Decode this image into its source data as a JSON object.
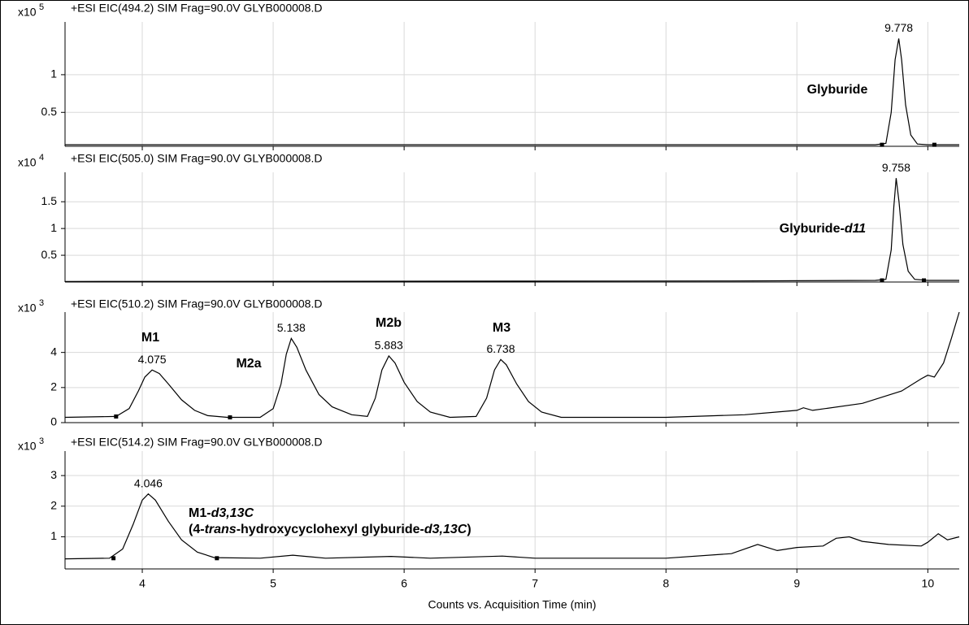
{
  "chart_data": [
    {
      "type": "line",
      "title": "+ESI EIC(494.2) SIM Frag=90.0V GLYB000008.D",
      "multiplier": {
        "base": "x10",
        "exponent": "5"
      },
      "color": "#000000",
      "grid": true,
      "x_tick_labels": false,
      "xlim": [
        3.41,
        10.24
      ],
      "xticks": [
        4,
        5,
        6,
        7,
        8,
        9,
        10
      ],
      "ylim": [
        0.05,
        1.7
      ],
      "yticks": [
        0.5,
        1
      ],
      "x": [
        3.41,
        9.0,
        9.6,
        9.68,
        9.72,
        9.75,
        9.778,
        9.8,
        9.83,
        9.87,
        9.92,
        10.0,
        10.24
      ],
      "values": [
        0.07,
        0.07,
        0.07,
        0.09,
        0.5,
        1.2,
        1.48,
        1.2,
        0.6,
        0.2,
        0.08,
        0.07,
        0.07
      ],
      "peaks": [
        {
          "time": 9.778,
          "height": 1.48
        }
      ],
      "integration_markers": {
        "x": [
          9.65,
          10.05
        ],
        "y": [
          0.07,
          0.07
        ]
      },
      "annotations": [
        {
          "parts": [
            "Glyburide"
          ]
        }
      ]
    },
    {
      "type": "line",
      "title": "+ESI EIC(505.0) SIM Frag=90.0V GLYB000008.D",
      "multiplier": {
        "base": "x10",
        "exponent": "4"
      },
      "color": "#000000",
      "grid": true,
      "x_tick_labels": false,
      "xlim": [
        3.41,
        10.24
      ],
      "xticks": [
        4,
        5,
        6,
        7,
        8,
        9,
        10
      ],
      "ylim": [
        0,
        2.05
      ],
      "yticks": [
        0.5,
        1,
        1.5
      ],
      "x": [
        3.41,
        8.5,
        9.6,
        9.68,
        9.72,
        9.74,
        9.758,
        9.78,
        9.81,
        9.85,
        9.9,
        10.0,
        10.24
      ],
      "values": [
        0.01,
        0.02,
        0.03,
        0.05,
        0.6,
        1.4,
        1.94,
        1.5,
        0.7,
        0.2,
        0.05,
        0.03,
        0.03
      ],
      "peaks": [
        {
          "time": 9.758,
          "height": 1.94
        }
      ],
      "integration_markers": {
        "x": [
          9.65,
          9.97
        ],
        "y": [
          0.03,
          0.03
        ]
      },
      "annotations": [
        {
          "parts": [
            "Glyburide-",
            "d11"
          ]
        }
      ]
    },
    {
      "type": "line",
      "title": "+ESI EIC(510.2) SIM Frag=90.0V GLYB000008.D",
      "multiplier": {
        "base": "x10",
        "exponent": "3"
      },
      "color": "#000000",
      "grid": true,
      "x_tick_labels": false,
      "xlim": [
        3.41,
        10.24
      ],
      "xticks": [
        4,
        5,
        6,
        7,
        8,
        9,
        10
      ],
      "ylim": [
        0,
        6.3
      ],
      "yticks": [
        0,
        2,
        4
      ],
      "x": [
        3.41,
        3.8,
        3.9,
        3.97,
        4.02,
        4.075,
        4.13,
        4.2,
        4.3,
        4.4,
        4.5,
        4.65,
        4.9,
        5.0,
        5.06,
        5.1,
        5.138,
        5.18,
        5.25,
        5.35,
        5.45,
        5.6,
        5.72,
        5.78,
        5.83,
        5.883,
        5.93,
        6.0,
        6.1,
        6.2,
        6.35,
        6.55,
        6.63,
        6.69,
        6.738,
        6.78,
        6.86,
        6.95,
        7.05,
        7.2,
        8.0,
        8.6,
        9.0,
        9.05,
        9.12,
        9.5,
        9.8,
        9.95,
        10.0,
        10.05,
        10.12,
        10.18,
        10.24
      ],
      "values": [
        0.3,
        0.35,
        0.8,
        1.8,
        2.6,
        3.0,
        2.8,
        2.2,
        1.3,
        0.7,
        0.4,
        0.3,
        0.3,
        0.8,
        2.2,
        3.9,
        4.8,
        4.3,
        3.0,
        1.6,
        0.9,
        0.45,
        0.35,
        1.4,
        3.0,
        3.8,
        3.4,
        2.3,
        1.2,
        0.6,
        0.3,
        0.35,
        1.4,
        3.0,
        3.6,
        3.3,
        2.2,
        1.2,
        0.6,
        0.3,
        0.3,
        0.45,
        0.7,
        0.85,
        0.7,
        1.1,
        1.8,
        2.5,
        2.7,
        2.6,
        3.4,
        4.8,
        6.3
      ],
      "peaks": [
        {
          "time": 4.075,
          "height": 3.0
        },
        {
          "time": 5.138,
          "height": 4.8
        },
        {
          "time": 5.883,
          "height": 3.8
        },
        {
          "time": 6.738,
          "height": 3.6
        }
      ],
      "integration_markers": {
        "x": [
          3.8,
          4.67
        ],
        "y": [
          0.35,
          0.3
        ]
      },
      "annotations": [
        {
          "parts": [
            "M1"
          ]
        },
        {
          "parts": [
            "M2a"
          ]
        },
        {
          "parts": [
            "M2b"
          ]
        },
        {
          "parts": [
            "M3"
          ]
        }
      ]
    },
    {
      "type": "line",
      "title": "+ESI EIC(514.2) SIM Frag=90.0V GLYB000008.D",
      "multiplier": {
        "base": "x10",
        "exponent": "3"
      },
      "color": "#000000",
      "grid": true,
      "x_tick_labels": true,
      "xlabel": "Counts vs. Acquisition Time (min)",
      "xlim": [
        3.41,
        10.24
      ],
      "xticks": [
        4,
        5,
        6,
        7,
        8,
        9,
        10
      ],
      "ylim": [
        -0.05,
        3.8
      ],
      "yticks": [
        1,
        2,
        3
      ],
      "x": [
        3.41,
        3.75,
        3.85,
        3.93,
        4.0,
        4.046,
        4.1,
        4.2,
        4.3,
        4.42,
        4.55,
        4.9,
        5.15,
        5.4,
        5.9,
        6.2,
        6.75,
        7.0,
        8.0,
        8.5,
        8.7,
        8.85,
        9.0,
        9.2,
        9.3,
        9.4,
        9.5,
        9.7,
        9.95,
        10.0,
        10.08,
        10.15,
        10.24
      ],
      "values": [
        0.28,
        0.3,
        0.6,
        1.4,
        2.2,
        2.4,
        2.2,
        1.5,
        0.9,
        0.5,
        0.32,
        0.3,
        0.4,
        0.3,
        0.36,
        0.3,
        0.37,
        0.3,
        0.3,
        0.45,
        0.75,
        0.55,
        0.65,
        0.7,
        0.95,
        1.0,
        0.85,
        0.75,
        0.7,
        0.82,
        1.1,
        0.9,
        1.0
      ],
      "peaks": [
        {
          "time": 4.046,
          "height": 2.4
        }
      ],
      "integration_markers": {
        "x": [
          3.78,
          4.57
        ],
        "y": [
          0.3,
          0.3
        ]
      },
      "annotations": [
        {
          "parts": [
            "M1-",
            "d3,13C"
          ]
        },
        {
          "parts": [
            "(4-",
            "trans",
            "-hydroxycyclohexyl glyburide-",
            "d3,13C",
            ")"
          ]
        }
      ]
    }
  ]
}
